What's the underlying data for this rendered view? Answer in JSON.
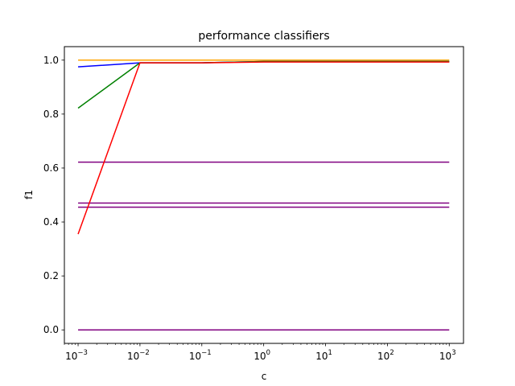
{
  "chart_data": {
    "type": "line",
    "title": "performance classifiers",
    "xlabel": "c",
    "ylabel": "f1",
    "xscale": "log",
    "xlim": [
      0.0006,
      1700
    ],
    "ylim": [
      -0.05,
      1.05
    ],
    "grid": false,
    "x": [
      0.001,
      0.01,
      0.1,
      1,
      10,
      100,
      1000
    ],
    "xticks": [
      {
        "value": 0.001,
        "base": "10",
        "exp": "−3"
      },
      {
        "value": 0.01,
        "base": "10",
        "exp": "−2"
      },
      {
        "value": 0.1,
        "base": "10",
        "exp": "−1"
      },
      {
        "value": 1,
        "base": "10",
        "exp": "0"
      },
      {
        "value": 10,
        "base": "10",
        "exp": "1"
      },
      {
        "value": 100,
        "base": "10",
        "exp": "2"
      },
      {
        "value": 1000,
        "base": "10",
        "exp": "3"
      }
    ],
    "yticks": [
      {
        "value": 0.0,
        "label": "0.0"
      },
      {
        "value": 0.2,
        "label": "0.2"
      },
      {
        "value": 0.4,
        "label": "0.4"
      },
      {
        "value": 0.6,
        "label": "0.6"
      },
      {
        "value": 0.8,
        "label": "0.8"
      },
      {
        "value": 1.0,
        "label": "1.0"
      }
    ],
    "series": [
      {
        "color": "#800080",
        "values": [
          0.0,
          0.0,
          0.0,
          0.0,
          0.0,
          0.0,
          0.0
        ]
      },
      {
        "color": "#800080",
        "values": [
          0.455,
          0.455,
          0.455,
          0.455,
          0.455,
          0.455,
          0.455
        ]
      },
      {
        "color": "#800080",
        "values": [
          0.47,
          0.47,
          0.47,
          0.47,
          0.47,
          0.47,
          0.47
        ]
      },
      {
        "color": "#800080",
        "values": [
          0.622,
          0.622,
          0.622,
          0.622,
          0.622,
          0.622,
          0.622
        ]
      },
      {
        "color": "#ffa500",
        "values": [
          1.0,
          1.0,
          1.0,
          1.0,
          1.0,
          1.0,
          1.0
        ]
      },
      {
        "color": "#0000ff",
        "values": [
          0.975,
          0.99,
          0.99,
          0.995,
          0.995,
          0.995,
          0.995
        ]
      },
      {
        "color": "#008000",
        "values": [
          0.822,
          0.99,
          0.99,
          0.995,
          0.995,
          0.995,
          0.995
        ]
      },
      {
        "color": "#ff0000",
        "values": [
          0.355,
          0.99,
          0.99,
          0.993,
          0.993,
          0.993,
          0.993
        ]
      }
    ]
  }
}
